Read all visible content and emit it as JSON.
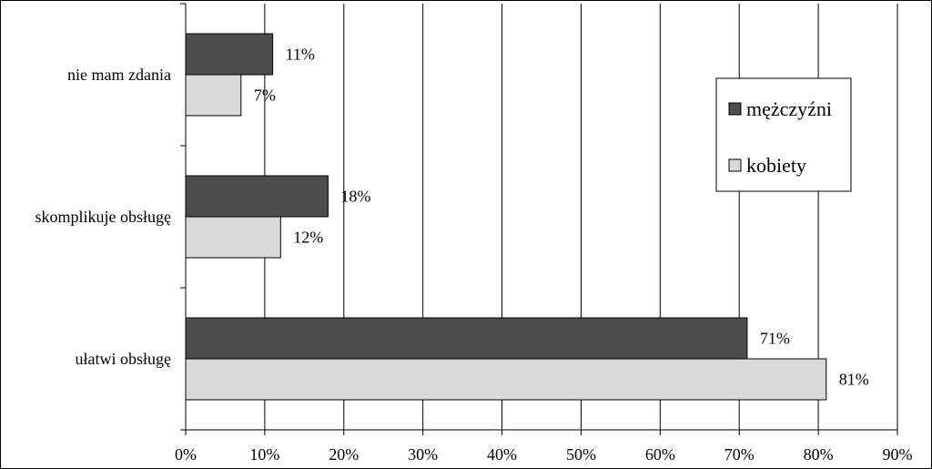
{
  "chart_data": {
    "type": "bar",
    "orientation": "horizontal",
    "categories": [
      "nie mam zdania",
      "skomplikuje obsługę",
      "ułatwi obsługę"
    ],
    "series": [
      {
        "name": "mężczyźni",
        "values": [
          11,
          18,
          71
        ],
        "labels": [
          "11%",
          "18%",
          "71%"
        ],
        "color": "#4d4d4d"
      },
      {
        "name": "kobiety",
        "values": [
          7,
          12,
          81
        ],
        "labels": [
          "7%",
          "12%",
          "81%"
        ],
        "color": "#d9d9d9"
      }
    ],
    "xlim": [
      0,
      90
    ],
    "xticks": [
      0,
      10,
      20,
      30,
      40,
      50,
      60,
      70,
      80,
      90
    ],
    "xtick_labels": [
      "0%",
      "10%",
      "20%",
      "30%",
      "40%",
      "50%",
      "60%",
      "70%",
      "80%",
      "90%"
    ],
    "grid": "vertical",
    "legend_position": "right",
    "title": "",
    "xlabel": "",
    "ylabel": ""
  }
}
